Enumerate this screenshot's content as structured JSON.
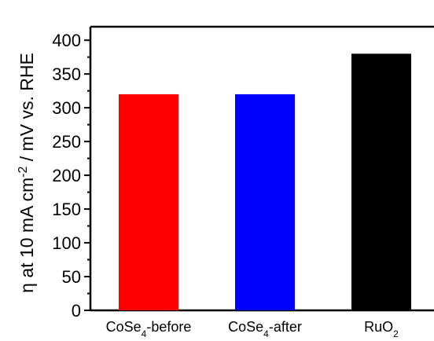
{
  "chart_data": {
    "type": "bar",
    "categories": [
      {
        "main": "CoSe",
        "sub": "4",
        "suffix": "-before"
      },
      {
        "main": "CoSe",
        "sub": "4",
        "suffix": "-after"
      },
      {
        "main": "RuO",
        "sub": "2",
        "suffix": ""
      }
    ],
    "values": [
      320,
      320,
      380
    ],
    "bar_colors": [
      "#ff0000",
      "#0000ff",
      "#000000"
    ],
    "ylim": [
      0,
      420
    ],
    "yticks": [
      0,
      50,
      100,
      150,
      200,
      250,
      300,
      350,
      400
    ],
    "ylabel": {
      "part1": "η at 10 mA cm",
      "sup": "-2",
      "part2": " / mV vs. RHE"
    },
    "grid": false,
    "legend": "none"
  }
}
